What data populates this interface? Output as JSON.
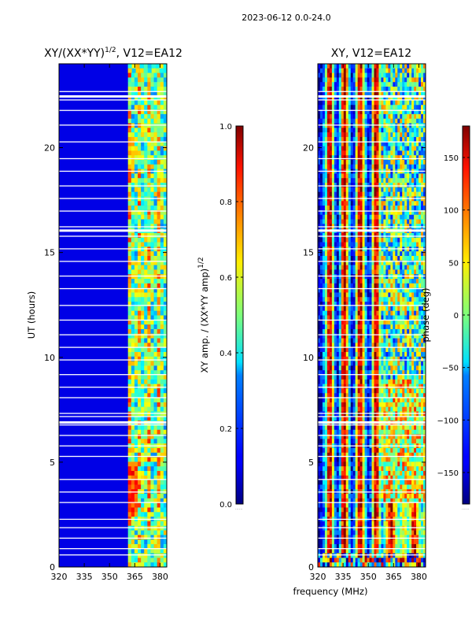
{
  "chart_data": {
    "suptitle": "2023-06-12 0.0-24.0",
    "xlabel": "frequency (MHz)",
    "panels": [
      {
        "type": "heatmap",
        "title": "XY/(XX*YY)",
        "title_sup": "1/2",
        "title_suffix": ", V12=EA12",
        "ylabel": "UT (hours)",
        "xlim": [
          320,
          384
        ],
        "ylim": [
          0,
          24
        ],
        "xticks": [
          "320",
          "335",
          "350",
          "365",
          "380"
        ],
        "yticks": [
          "0",
          "5",
          "10",
          "15",
          "20"
        ],
        "colorbar": {
          "label": "XY amp. / (XX*YY amp)",
          "label_sup": "1/2",
          "range": [
            0.0,
            1.0
          ],
          "ticks": [
            "0.0",
            "0.2",
            "0.4",
            "0.6",
            "0.8",
            "1.0"
          ],
          "offset_text": "......"
        }
      },
      {
        "type": "heatmap",
        "title": "XY, V12=EA12",
        "xlim": [
          320,
          384
        ],
        "ylim": [
          0,
          24
        ],
        "xticks": [
          "320",
          "335",
          "350",
          "365",
          "380"
        ],
        "yticks": [
          "0",
          "5",
          "10",
          "15",
          "20"
        ],
        "colorbar": {
          "label": "phase (deg)",
          "range": [
            -180,
            180
          ],
          "ticks": [
            "−150",
            "−100",
            "−50",
            "0",
            "50",
            "100",
            "150"
          ],
          "offset_text": "......"
        }
      }
    ]
  }
}
